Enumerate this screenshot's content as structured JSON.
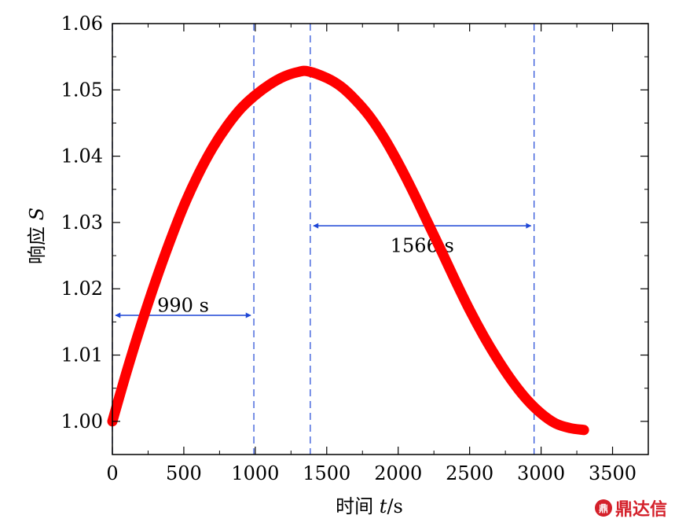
{
  "chart_data": {
    "type": "line",
    "xlabel_prefix": "时间 ",
    "xlabel_var": "t",
    "xlabel_suffix": "/s",
    "ylabel_prefix": "响应 ",
    "ylabel_var": "S",
    "xlim": [
      0,
      3750
    ],
    "ylim": [
      0.995,
      1.06
    ],
    "xticks": [
      0,
      500,
      1000,
      1500,
      2000,
      2500,
      3000,
      3500
    ],
    "xtick_labels": [
      "0",
      "500",
      "1000",
      "1500",
      "2000",
      "2500",
      "3000",
      "3500"
    ],
    "yticks": [
      1.0,
      1.01,
      1.02,
      1.03,
      1.04,
      1.05,
      1.06
    ],
    "ytick_labels": [
      "1.00",
      "1.01",
      "1.02",
      "1.03",
      "1.04",
      "1.05",
      "1.06"
    ],
    "series": [
      {
        "name": "S",
        "color": "#ff0000",
        "x": [
          0,
          100,
          200,
          300,
          400,
          500,
          600,
          700,
          800,
          900,
          1000,
          1100,
          1200,
          1300,
          1370,
          1500,
          1600,
          1700,
          1800,
          1900,
          2000,
          2100,
          2200,
          2300,
          2400,
          2500,
          2600,
          2700,
          2800,
          2900,
          3000,
          3100,
          3200,
          3300
        ],
        "y": [
          1.0,
          1.0075,
          1.0145,
          1.021,
          1.027,
          1.0325,
          1.0372,
          1.0412,
          1.0445,
          1.0472,
          1.0492,
          1.0508,
          1.052,
          1.0527,
          1.0528,
          1.0518,
          1.0505,
          1.0485,
          1.046,
          1.0428,
          1.039,
          1.0348,
          1.0303,
          1.0258,
          1.0212,
          1.0168,
          1.0128,
          1.0092,
          1.006,
          1.0033,
          1.0012,
          0.9997,
          0.999,
          0.9987
        ]
      }
    ],
    "vlines": [
      0,
      990,
      1385,
      2951
    ],
    "annotations": [
      {
        "text": "990 s",
        "x_from": 0,
        "x_to": 990,
        "y_arrow": 1.016,
        "y_text": 1.0175
      },
      {
        "text": "1566 s",
        "x_from": 1385,
        "x_to": 2951,
        "y_arrow": 1.0295,
        "y_text": 1.0265
      }
    ]
  },
  "watermark": {
    "logo": "鼎",
    "text": "鼎达信"
  }
}
